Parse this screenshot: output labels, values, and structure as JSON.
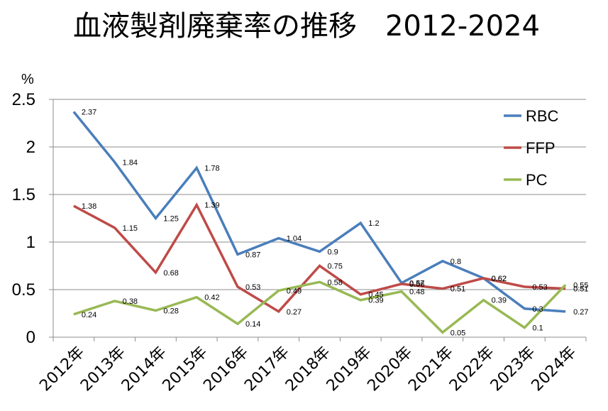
{
  "chart_data": {
    "type": "line",
    "title": "血液製剤廃棄率の推移　2012-2024",
    "ylabel": "%",
    "xlabel": "",
    "ylim": [
      0,
      2.5
    ],
    "yticks": [
      "0",
      "0.5",
      "1",
      "1.5",
      "2",
      "2.5"
    ],
    "grid": true,
    "legend_position": "top-right",
    "categories": [
      "2012年",
      "2013年",
      "2014年",
      "2015年",
      "2016年",
      "2017年",
      "2018年",
      "2019年",
      "2020年",
      "2021年",
      "2022年",
      "2023年",
      "2024年"
    ],
    "series": [
      {
        "name": "RBC",
        "color": "#4a7ebb",
        "values": [
          2.37,
          1.84,
          1.25,
          1.78,
          0.87,
          1.04,
          0.9,
          1.2,
          0.57,
          0.8,
          0.62,
          0.3,
          0.27
        ]
      },
      {
        "name": "FFP",
        "color": "#be4b48",
        "values": [
          1.38,
          1.15,
          0.68,
          1.39,
          0.53,
          0.27,
          0.75,
          0.45,
          0.56,
          0.51,
          0.62,
          0.53,
          0.51
        ]
      },
      {
        "name": "PC",
        "color": "#98b954",
        "values": [
          0.24,
          0.38,
          0.28,
          0.42,
          0.14,
          0.49,
          0.58,
          0.39,
          0.48,
          0.05,
          0.39,
          0.1,
          0.55
        ]
      }
    ]
  }
}
